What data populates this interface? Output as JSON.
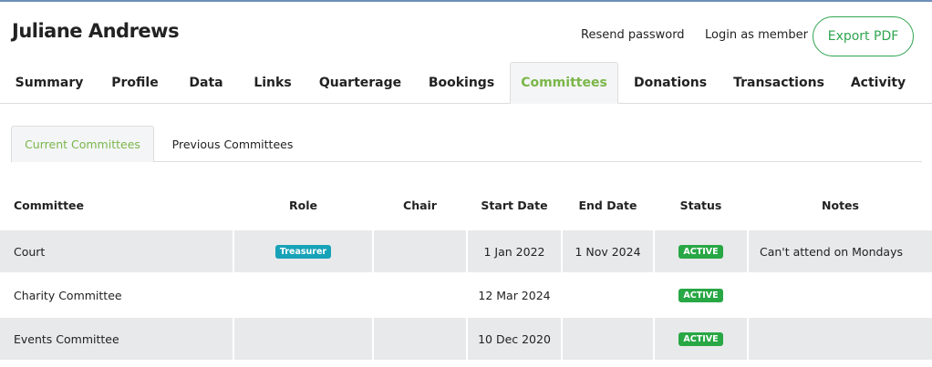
{
  "header": {
    "title": "Juliane Andrews",
    "resend_password": "Resend password",
    "login_as_member": "Login as member",
    "export_pdf": "Export PDF"
  },
  "tabs": [
    "Summary",
    "Profile",
    "Data",
    "Links",
    "Quarterage",
    "Bookings",
    "Committees",
    "Donations",
    "Transactions",
    "Activity"
  ],
  "active_tab": "Committees",
  "subtabs": [
    "Current Committees",
    "Previous Committees"
  ],
  "active_subtab": "Current Committees",
  "colors": {
    "accent": "#7ab648",
    "export": "#2ea44f",
    "role_badge": "#17a2b8",
    "status_badge": "#28a745"
  },
  "table": {
    "headers": [
      "Committee",
      "Role",
      "Chair",
      "Start Date",
      "End Date",
      "Status",
      "Notes"
    ],
    "rows": [
      {
        "committee": "Court",
        "role": "Treasurer",
        "chair": "",
        "start": "1 Jan 2022",
        "end": "1 Nov 2024",
        "status": "ACTIVE",
        "notes": "Can't attend on Mondays"
      },
      {
        "committee": "Charity Committee",
        "role": "",
        "chair": "",
        "start": "12 Mar 2024",
        "end": "",
        "status": "ACTIVE",
        "notes": ""
      },
      {
        "committee": "Events Committee",
        "role": "",
        "chair": "",
        "start": "10 Dec 2020",
        "end": "",
        "status": "ACTIVE",
        "notes": ""
      }
    ]
  }
}
